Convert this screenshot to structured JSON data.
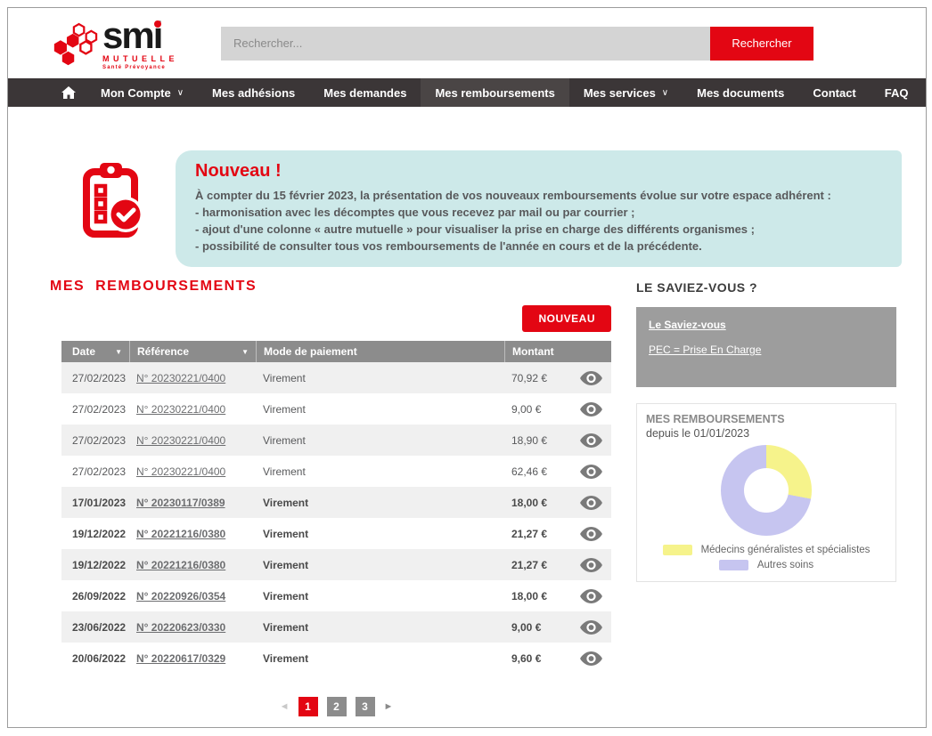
{
  "colors": {
    "brand_red": "#e30613",
    "nav_bg": "#3b3637",
    "nav_active_bg": "#4a4545",
    "announce_bg": "#cde9e9",
    "table_header_bg": "#8c8c8c",
    "table_alt_row_bg": "#f0f0f0",
    "sidebar_box_bg": "#9d9d9d",
    "chart_yellow": "#f6f38b",
    "chart_lavender": "#c6c5f0"
  },
  "icons": {
    "chevron_down": "∨",
    "sort_desc": "▼",
    "prev_arrow": "◄",
    "next_arrow": "►"
  },
  "header": {
    "logo": {
      "brand": "smi",
      "sub": "MUTUELLE",
      "tagline": "Santé Prévoyance"
    },
    "search": {
      "placeholder": "Rechercher...",
      "button_label": "Rechercher"
    }
  },
  "nav": {
    "items": [
      {
        "label": "Mon Compte",
        "dropdown": true,
        "active": false
      },
      {
        "label": "Mes adhésions",
        "dropdown": false,
        "active": false
      },
      {
        "label": "Mes demandes",
        "dropdown": false,
        "active": false
      },
      {
        "label": "Mes remboursements",
        "dropdown": false,
        "active": true
      },
      {
        "label": "Mes services",
        "dropdown": true,
        "active": false
      },
      {
        "label": "Mes documents",
        "dropdown": false,
        "active": false
      },
      {
        "label": "Contact",
        "dropdown": false,
        "active": false
      },
      {
        "label": "FAQ",
        "dropdown": false,
        "active": false
      }
    ]
  },
  "announcement": {
    "title": "Nouveau !",
    "lines": [
      "À compter du 15 février 2023, la présentation de vos nouveaux remboursements évolue sur votre espace adhérent :",
      "- harmonisation avec les décomptes que vous recevez par mail ou par courrier ;",
      "- ajout d'une colonne « autre mutuelle » pour visualiser la prise en charge des différents organismes ;",
      "- possibilité de consulter tous vos remboursements de l'année en cours et de la précédente."
    ]
  },
  "main": {
    "title": "MES REMBOURSEMENTS",
    "new_button_label": "NOUVEAU",
    "table": {
      "columns": [
        "Date",
        "Référence",
        "Mode de paiement",
        "Montant"
      ],
      "sortable_columns": [
        "Date",
        "Référence"
      ],
      "rows": [
        {
          "date": "27/02/2023",
          "reference": "N° 20230221/0400",
          "payment": "Virement",
          "amount": "70,92 €",
          "bold": false
        },
        {
          "date": "27/02/2023",
          "reference": "N° 20230221/0400",
          "payment": "Virement",
          "amount": "9,00 €",
          "bold": false
        },
        {
          "date": "27/02/2023",
          "reference": "N° 20230221/0400",
          "payment": "Virement",
          "amount": "18,90 €",
          "bold": false
        },
        {
          "date": "27/02/2023",
          "reference": "N° 20230221/0400",
          "payment": "Virement",
          "amount": "62,46 €",
          "bold": false
        },
        {
          "date": "17/01/2023",
          "reference": "N° 20230117/0389",
          "payment": "Virement",
          "amount": "18,00 €",
          "bold": true
        },
        {
          "date": "19/12/2022",
          "reference": "N° 20221216/0380",
          "payment": "Virement",
          "amount": "21,27 €",
          "bold": true
        },
        {
          "date": "19/12/2022",
          "reference": "N° 20221216/0380",
          "payment": "Virement",
          "amount": "21,27 €",
          "bold": true
        },
        {
          "date": "26/09/2022",
          "reference": "N° 20220926/0354",
          "payment": "Virement",
          "amount": "18,00 €",
          "bold": true
        },
        {
          "date": "23/06/2022",
          "reference": "N° 20220623/0330",
          "payment": "Virement",
          "amount": "9,00 €",
          "bold": true
        },
        {
          "date": "20/06/2022",
          "reference": "N° 20220617/0329",
          "payment": "Virement",
          "amount": "9,60 €",
          "bold": true
        }
      ]
    },
    "pagination": {
      "pages": [
        "1",
        "2",
        "3"
      ],
      "active_page": "1"
    }
  },
  "sidebar": {
    "didyouknow": {
      "title": "LE SAVIEZ-VOUS ?",
      "links": [
        "Le Saviez-vous",
        "PEC = Prise En Charge"
      ]
    },
    "chart_card": {
      "title": "MES REMBOURSEMENTS",
      "subtitle": "depuis le 01/01/2023"
    }
  },
  "chart_data": {
    "type": "pie",
    "donut": true,
    "title": "MES REMBOURSEMENTS depuis le 01/01/2023",
    "labels": [
      "Médecins généralistes et spécialistes",
      "Autres soins"
    ],
    "values": [
      28,
      72
    ],
    "value_unit": "percent (estimated from arc angles)",
    "colors": [
      "#f6f38b",
      "#c6c5f0"
    ],
    "legend_position": "bottom",
    "start_angle_deg": 0,
    "direction": "clockwise"
  }
}
